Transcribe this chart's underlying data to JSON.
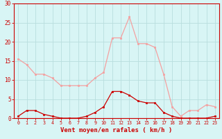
{
  "hours": [
    0,
    1,
    2,
    3,
    4,
    5,
    6,
    7,
    8,
    9,
    10,
    11,
    12,
    13,
    14,
    15,
    16,
    17,
    18,
    19,
    20,
    21,
    22,
    23
  ],
  "rafales": [
    15.5,
    14.0,
    11.5,
    11.5,
    10.5,
    8.5,
    8.5,
    8.5,
    8.5,
    10.5,
    12.0,
    21.0,
    21.0,
    26.5,
    19.5,
    19.5,
    18.5,
    11.5,
    3.0,
    0.5,
    2.0,
    2.0,
    3.5,
    3.0
  ],
  "moyen": [
    0.5,
    2.0,
    2.0,
    1.0,
    0.5,
    0.0,
    0.0,
    0.0,
    0.5,
    1.5,
    3.0,
    7.0,
    7.0,
    6.0,
    4.5,
    4.0,
    4.0,
    1.5,
    0.5,
    0.0,
    0.0,
    0.0,
    0.0,
    0.5
  ],
  "color_rafales": "#F4A0A0",
  "color_moyen": "#CC0000",
  "bg_color": "#D8F5F5",
  "grid_color": "#B8DEDE",
  "xlabel": "Vent moyen/en rafales ( km/h )",
  "tick_color": "#CC0000",
  "ylim": [
    0,
    30
  ],
  "yticks": [
    0,
    5,
    10,
    15,
    20,
    25,
    30
  ],
  "xlim": [
    -0.5,
    23.5
  ],
  "figwidth": 3.2,
  "figheight": 2.0,
  "dpi": 100
}
